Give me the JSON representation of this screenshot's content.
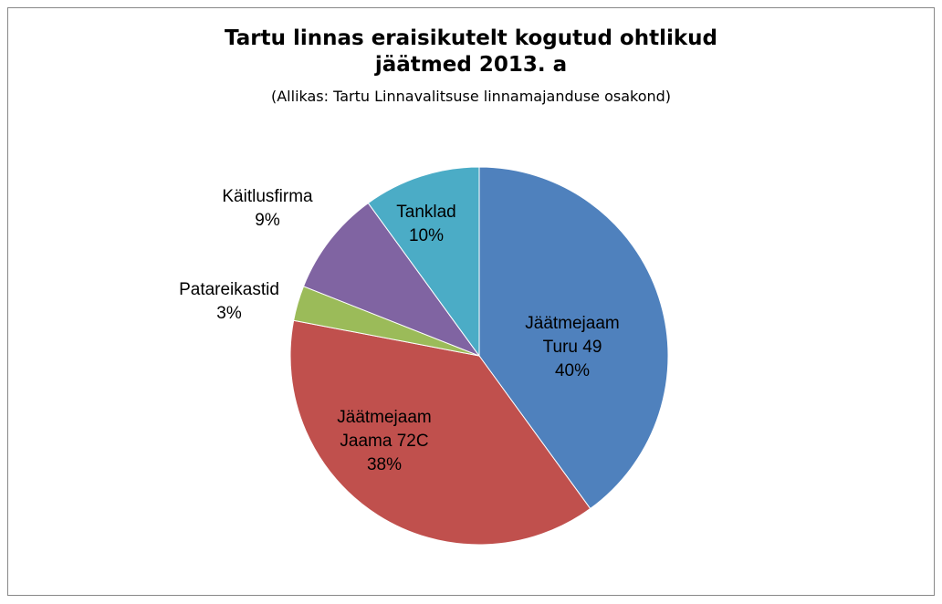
{
  "chart_data": {
    "type": "pie",
    "title": "Tartu linnas eraisikutelt kogutud ohtlikud jäätmed 2013. a",
    "subtitle": "(Allikas: Tartu Linnavalitsuse linnamajanduse osakond)",
    "categories": [
      "Jäätmejaam Turu 49",
      "Jäätmejaam Jaama 72C",
      "Patareikastid",
      "Käitlusfirma",
      "Tanklad"
    ],
    "values": [
      40,
      38,
      3,
      9,
      10
    ],
    "value_labels": [
      "40%",
      "38%",
      "3%",
      "9%",
      "10%"
    ],
    "colors": [
      "#4f81bd",
      "#c0504d",
      "#9bbb59",
      "#8064a2",
      "#4bacc6"
    ]
  }
}
